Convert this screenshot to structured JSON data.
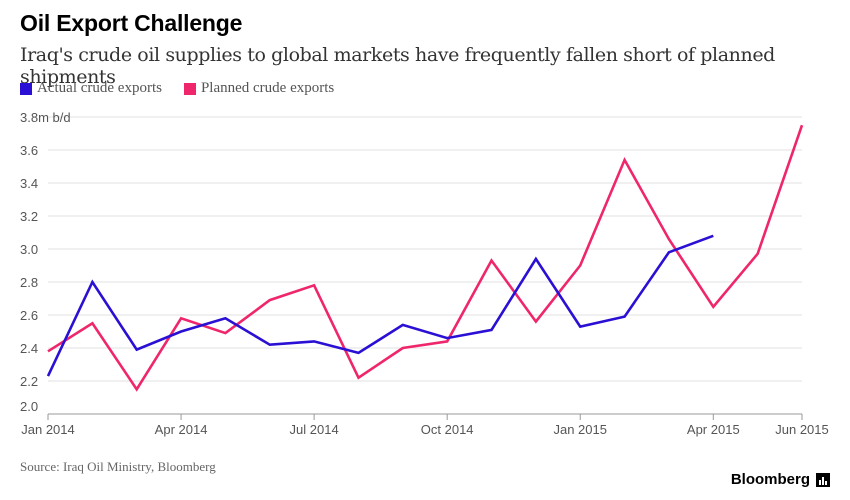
{
  "header": {
    "title": "Oil Export Challenge",
    "subtitle": "Iraq's crude oil supplies to global markets have frequently fallen short of planned shipments"
  },
  "footer": {
    "source": "Source: Iraq Oil Ministry, Bloomberg",
    "brand": "Bloomberg"
  },
  "colors": {
    "actual": "#2a0fd4",
    "planned": "#f0266c",
    "grid": "#e2e2e2",
    "axis": "#999999"
  },
  "chart_data": {
    "type": "line",
    "x": [
      "Jan 2014",
      "Feb 2014",
      "Mar 2014",
      "Apr 2014",
      "May 2014",
      "Jun 2014",
      "Jul 2014",
      "Aug 2014",
      "Sep 2014",
      "Oct 2014",
      "Nov 2014",
      "Dec 2014",
      "Jan 2015",
      "Feb 2015",
      "Mar 2015",
      "Apr 2015",
      "May 2015",
      "Jun 2015"
    ],
    "x_tick_labels": [
      "Jan 2014",
      "Apr 2014",
      "Jul 2014",
      "Oct 2014",
      "Jan 2015",
      "Apr 2015",
      "Jun 2015"
    ],
    "x_tick_positions": [
      "Jan 2014",
      "Apr 2014",
      "Jul 2014",
      "Oct 2014",
      "Jan 2015",
      "Apr 2015",
      "Jun 2015"
    ],
    "y_tick_labels": [
      "2.0",
      "2.2",
      "2.4",
      "2.6",
      "2.8",
      "3.0",
      "3.2",
      "3.4",
      "3.6",
      "3.8m b/d"
    ],
    "ylim": [
      2.0,
      3.8
    ],
    "series": [
      {
        "name": "Actual crude exports",
        "color": "#2a0fd4",
        "values": [
          2.23,
          2.8,
          2.39,
          2.5,
          2.58,
          2.42,
          2.44,
          2.37,
          2.54,
          2.46,
          2.51,
          2.94,
          2.53,
          2.59,
          2.98,
          3.08,
          null,
          null
        ]
      },
      {
        "name": "Planned crude exports",
        "color": "#f0266c",
        "values": [
          2.38,
          2.55,
          2.15,
          2.58,
          2.49,
          2.69,
          2.78,
          2.22,
          2.4,
          2.44,
          2.93,
          2.56,
          2.9,
          3.54,
          3.06,
          2.65,
          2.97,
          3.75
        ]
      }
    ],
    "legend": "top-left",
    "grid": true
  }
}
